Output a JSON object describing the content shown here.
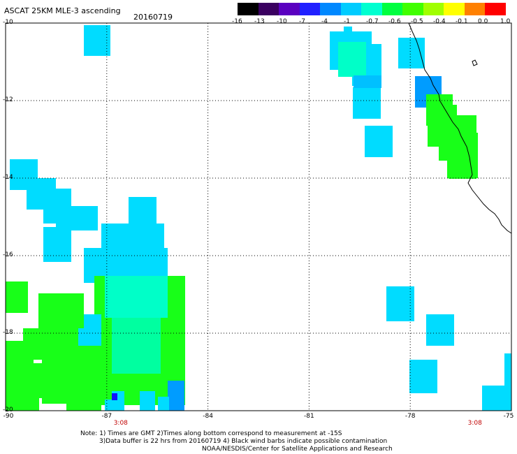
{
  "header": {
    "title": "ASCAT 25KM MLE-3 ascending",
    "date": "20160719"
  },
  "color_scale": {
    "labels": [
      "-16",
      "-13",
      "-10",
      "-7",
      "-4",
      "-1",
      "-0.7",
      "-0.6",
      "-0.5",
      "-0.4",
      "-0.1",
      "0.0",
      "1.0"
    ],
    "colors": [
      "#000000",
      "#3a0060",
      "#5a00c0",
      "#2020ff",
      "#0088ff",
      "#00ccff",
      "#00ffd0",
      "#00ff40",
      "#40ff00",
      "#a0ff00",
      "#ffff00",
      "#ff8000",
      "#ff0000"
    ]
  },
  "map": {
    "lat_labels": [
      "-10",
      "-12",
      "-14",
      "-16",
      "-18",
      "-20"
    ],
    "lon_labels": [
      "-90",
      "-87",
      "-84",
      "-81",
      "-78",
      "-75"
    ],
    "time_labels": [
      {
        "lon": "-87",
        "text": "3:08"
      },
      {
        "lon": "-76",
        "text": "3:08"
      }
    ]
  },
  "notes": {
    "line1": "Note: 1) Times are GMT 2)Times along bottom correspond to measurement at -15S",
    "line2": "3)Data buffer is 22 hrs from 20160719 4) Black wind barbs indicate possible contamination",
    "line3": "NOAA/NESDIS/Center for Satellite Applications and Research"
  }
}
